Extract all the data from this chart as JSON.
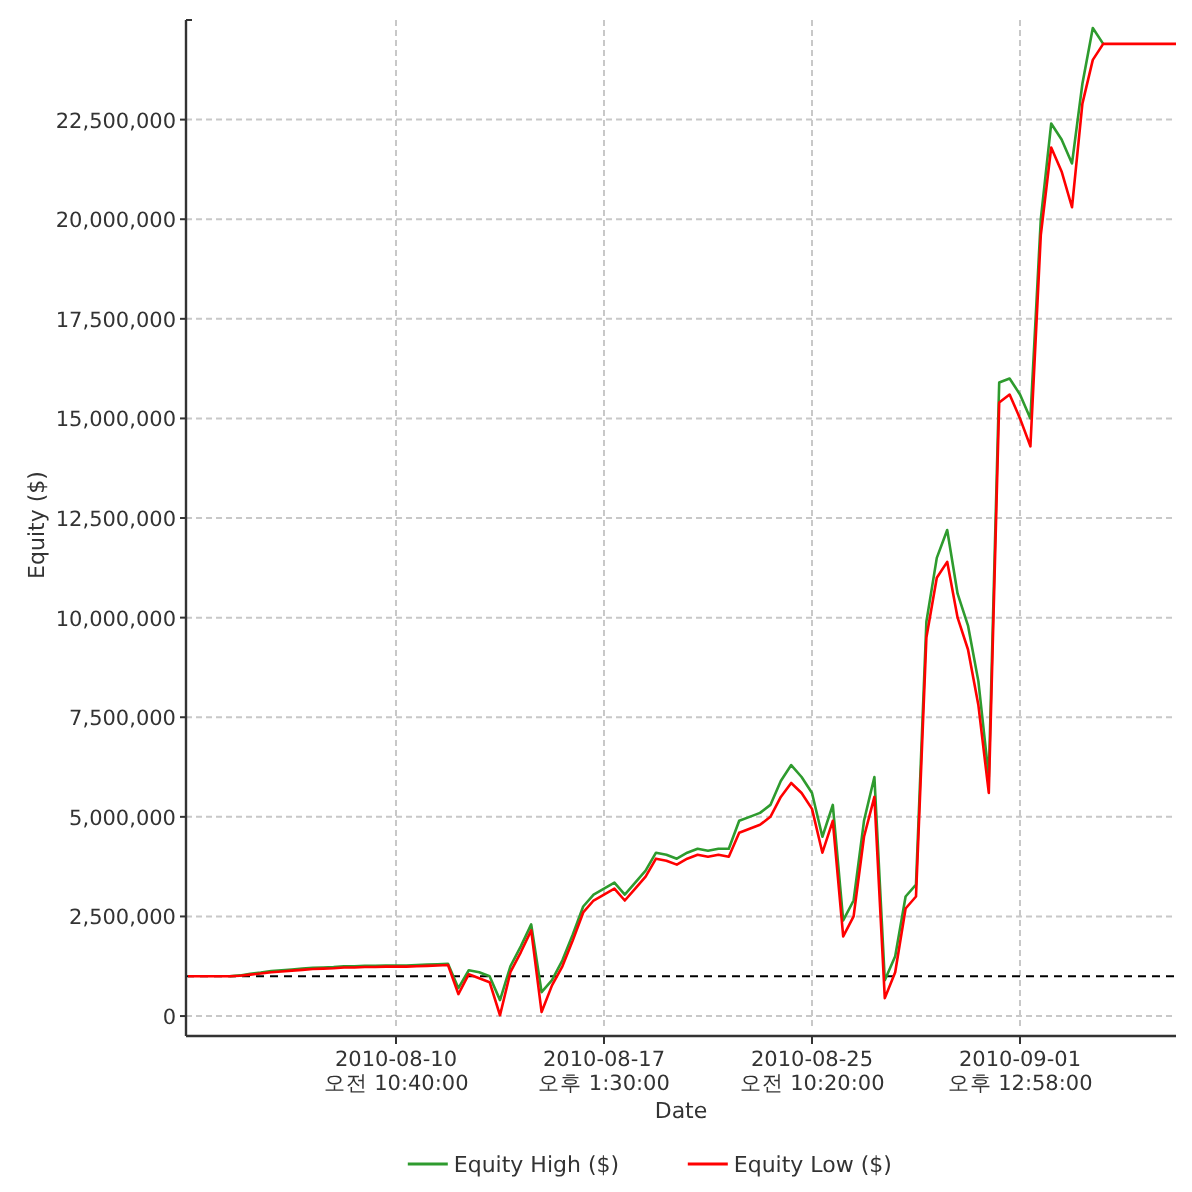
{
  "chart_data": {
    "type": "line",
    "xlabel": "Date",
    "ylabel": "Equity ($)",
    "categories": [
      null,
      null,
      null,
      null,
      null,
      null,
      null,
      null,
      null,
      null,
      null,
      null,
      null,
      null,
      null,
      null,
      null,
      null,
      null,
      null,
      "2010-08-10 오전 10:40:00",
      null,
      null,
      null,
      null,
      null,
      null,
      null,
      null,
      null,
      null,
      null,
      null,
      null,
      null,
      null,
      null,
      null,
      null,
      null,
      "2010-08-17 오후 1:30:00",
      null,
      null,
      null,
      null,
      null,
      null,
      null,
      null,
      null,
      null,
      null,
      null,
      null,
      null,
      null,
      null,
      null,
      null,
      null,
      "2010-08-25 오전 10:20:00",
      null,
      null,
      null,
      null,
      null,
      null,
      null,
      null,
      null,
      null,
      null,
      null,
      null,
      null,
      null,
      null,
      null,
      null,
      null,
      "2010-09-01 오후 12:58:00",
      null,
      null,
      null,
      null,
      null,
      null,
      null,
      null,
      null,
      null,
      null,
      null,
      null,
      null,
      null
    ],
    "series": [
      {
        "name": "Equity High ($)",
        "color": "#2e9b2e",
        "values": [
          null,
          null,
          null,
          null,
          1000000,
          1020000,
          1060000,
          1090000,
          1130000,
          1150000,
          1170000,
          1190000,
          1210000,
          1220000,
          1230000,
          1250000,
          1250000,
          1260000,
          1260000,
          1270000,
          1270000,
          1270000,
          1280000,
          1290000,
          1300000,
          1310000,
          700000,
          1150000,
          1100000,
          1000000,
          400000,
          1250000,
          1750000,
          2300000,
          600000,
          900000,
          1400000,
          2050000,
          2750000,
          3050000,
          3200000,
          3350000,
          3050000,
          3350000,
          3650000,
          4100000,
          4050000,
          3950000,
          4100000,
          4200000,
          4150000,
          4200000,
          4200000,
          4900000,
          5000000,
          5100000,
          5300000,
          5900000,
          6300000,
          6000000,
          5600000,
          4500000,
          5300000,
          2400000,
          2900000,
          4900000,
          6000000,
          900000,
          1500000,
          3000000,
          3300000,
          9900000,
          11500000,
          12200000,
          10600000,
          9800000,
          8400000,
          6000000,
          15900000,
          16000000,
          15600000,
          15000000,
          20000000,
          22400000,
          22000000,
          21400000,
          23400000,
          24800000,
          24400000,
          null,
          null,
          null,
          null,
          null,
          null,
          null
        ]
      },
      {
        "name": "Equity Low ($)",
        "color": "#ff0000",
        "values": [
          1000000,
          1000000,
          1000000,
          1000000,
          1000000,
          1010000,
          1040000,
          1070000,
          1100000,
          1120000,
          1140000,
          1160000,
          1180000,
          1190000,
          1200000,
          1220000,
          1220000,
          1230000,
          1230000,
          1240000,
          1240000,
          1240000,
          1250000,
          1260000,
          1270000,
          1280000,
          550000,
          1050000,
          950000,
          850000,
          20000,
          1100000,
          1600000,
          2150000,
          100000,
          770000,
          1250000,
          1900000,
          2600000,
          2900000,
          3050000,
          3200000,
          2900000,
          3200000,
          3500000,
          3950000,
          3900000,
          3800000,
          3950000,
          4050000,
          4000000,
          4050000,
          4000000,
          4600000,
          4700000,
          4800000,
          5000000,
          5500000,
          5850000,
          5600000,
          5200000,
          4100000,
          4900000,
          2000000,
          2500000,
          4500000,
          5500000,
          450000,
          1100000,
          2700000,
          3000000,
          9500000,
          11000000,
          11400000,
          10000000,
          9200000,
          7800000,
          5600000,
          15400000,
          15600000,
          15000000,
          14300000,
          19600000,
          21800000,
          21200000,
          20300000,
          22900000,
          24000000,
          24400000,
          24400000,
          24400000,
          24400000,
          24400000,
          24400000,
          24400000,
          24400000
        ]
      }
    ],
    "ylim": [
      -350000,
      25000000
    ],
    "yticks": [
      0,
      {
        "value": 2500000,
        "label": "2,500,000"
      },
      {
        "value": 5000000,
        "label": "5,000,000"
      },
      {
        "value": 7500000,
        "label": "7,500,000"
      },
      {
        "value": 10000000,
        "label": "10,000,000"
      },
      {
        "value": 12500000,
        "label": "12,500,000"
      },
      {
        "value": 15000000,
        "label": "15,000,000"
      },
      {
        "value": 17500000,
        "label": "17,500,000"
      },
      {
        "value": 20000000,
        "label": "20,000,000"
      },
      {
        "value": 22500000,
        "label": "22,500,000"
      }
    ],
    "ref_lines": [
      {
        "axis": "y",
        "value": 1000000,
        "color": "#000000",
        "line_style": "dashed"
      }
    ],
    "grid": true,
    "legend": "bottom",
    "marker": "none",
    "line_style": "solid"
  }
}
